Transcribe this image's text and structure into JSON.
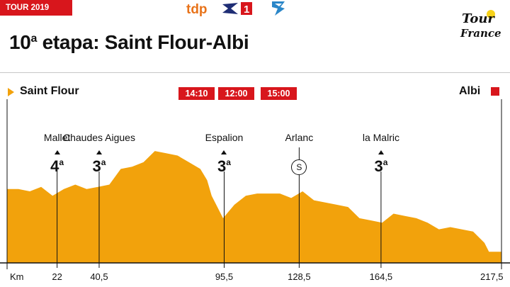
{
  "header": {
    "tag": "TOUR 2019",
    "title_number": "10",
    "title_suffix": "a",
    "title_text": " etapa: Saint Flour-Albi"
  },
  "logo": {
    "icon": "tour-de-france-logo-icon",
    "text": "Tour de France"
  },
  "channels": [
    {
      "name": "tdp",
      "icon": "tdp-logo-icon",
      "time": "14:10"
    },
    {
      "name": "Eurosport 1",
      "icon": "eurosport1-logo-icon",
      "time": "12:00"
    },
    {
      "name": "channel 3",
      "icon": "channel-logo-icon",
      "time": "15:00"
    }
  ],
  "start": "Saint Flour",
  "finish": "Albi",
  "km_label": "Km",
  "distance_total": 217.5,
  "checkpoints": [
    {
      "name": "Mallet",
      "km": 22,
      "km_label": "22",
      "type": "climb",
      "category": "4",
      "cat_suffix": "a"
    },
    {
      "name": "Chaudes Aigues",
      "km": 40.5,
      "km_label": "40,5",
      "type": "climb",
      "category": "3",
      "cat_suffix": "a"
    },
    {
      "name": "Espalion",
      "km": 95.5,
      "km_label": "95,5",
      "type": "climb",
      "category": "3",
      "cat_suffix": "a"
    },
    {
      "name": "Arlanc",
      "km": 128.5,
      "km_label": "128,5",
      "type": "sprint",
      "symbol": "S"
    },
    {
      "name": "la Malric",
      "km": 164.5,
      "km_label": "164,5",
      "type": "climb",
      "category": "3",
      "cat_suffix": "a"
    }
  ],
  "end_km_label": "217,5",
  "colors": {
    "accent": "#d8161c",
    "profile": "#f2a20c",
    "start_arrow": "#f2a20c"
  },
  "chart_data": {
    "type": "area",
    "x": [
      0,
      5,
      10,
      15,
      20,
      25,
      30,
      35,
      40,
      45,
      50,
      55,
      60,
      65,
      70,
      75,
      80,
      85,
      88,
      90,
      95,
      100,
      105,
      110,
      115,
      120,
      125,
      130,
      135,
      140,
      145,
      150,
      155,
      160,
      165,
      170,
      175,
      180,
      185,
      190,
      195,
      200,
      205,
      210,
      212,
      217.5
    ],
    "y": [
      66,
      66,
      64,
      68,
      60,
      66,
      70,
      66,
      68,
      70,
      84,
      86,
      90,
      100,
      98,
      96,
      90,
      84,
      74,
      60,
      40,
      52,
      60,
      62,
      62,
      62,
      58,
      64,
      56,
      54,
      52,
      50,
      40,
      38,
      36,
      44,
      42,
      40,
      36,
      30,
      32,
      30,
      28,
      18,
      10,
      10
    ]
  }
}
